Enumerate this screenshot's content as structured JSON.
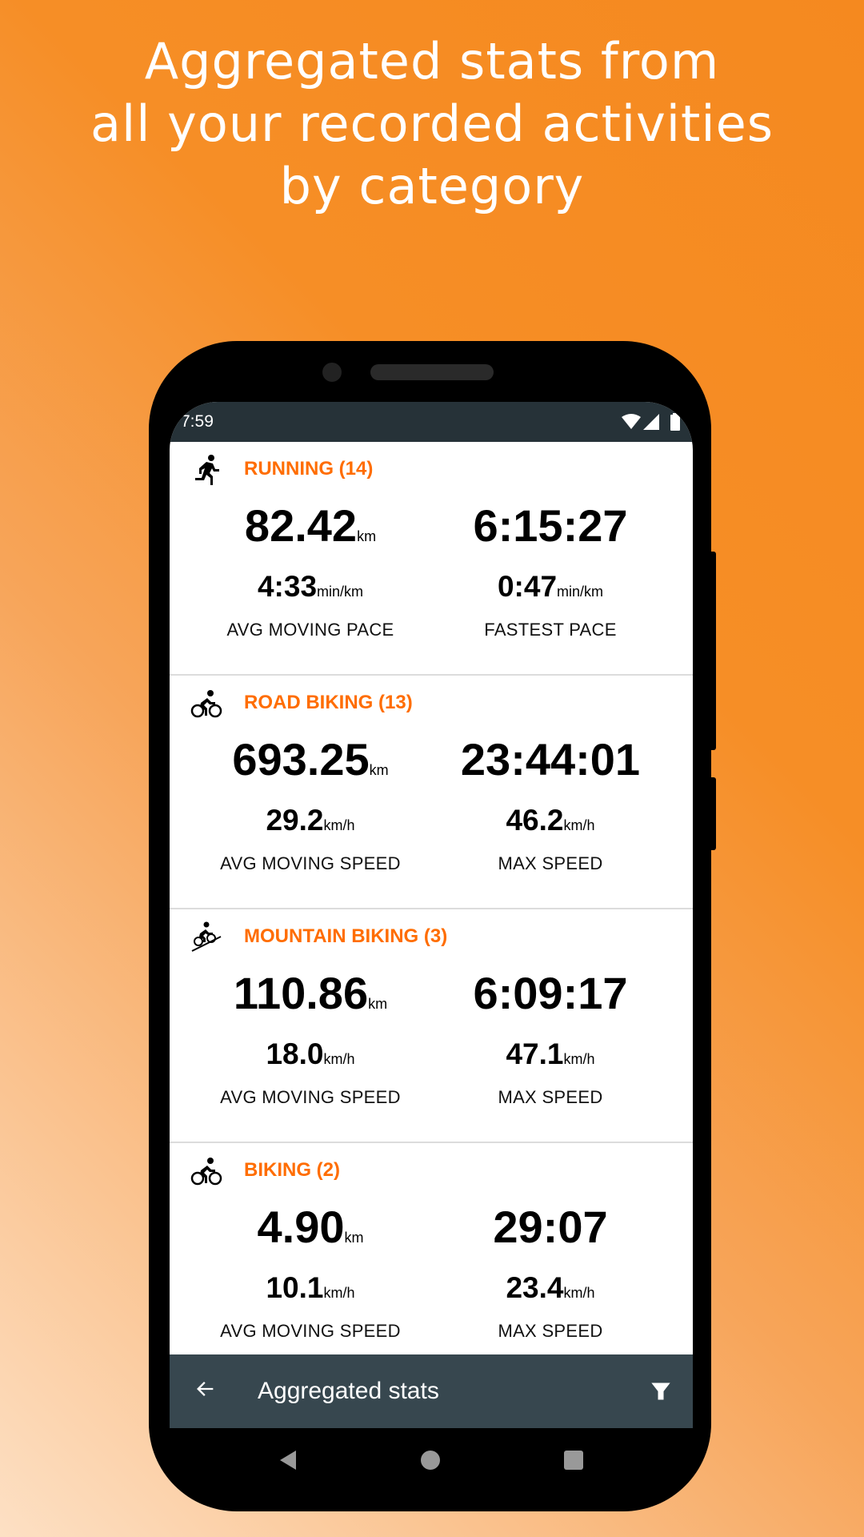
{
  "headline": [
    "Aggregated stats from",
    "all your recorded activities",
    "by category"
  ],
  "status": {
    "time": "7:59",
    "icons": [
      "wifi-icon",
      "signal-icon",
      "battery-icon"
    ]
  },
  "accent": "#ff6d00",
  "sections": [
    {
      "icon": "running-icon",
      "title": "RUNNING (14)",
      "distance": "82.42",
      "distance_unit": "km",
      "time": "6:15:27",
      "stat1": "4:33",
      "stat1_unit": "min/km",
      "stat1_label": "AVG MOVING PACE",
      "stat2": "0:47",
      "stat2_unit": "min/km",
      "stat2_label": "FASTEST PACE"
    },
    {
      "icon": "road-bike-icon",
      "title": "ROAD BIKING (13)",
      "distance": "693.25",
      "distance_unit": "km",
      "time": "23:44:01",
      "stat1": "29.2",
      "stat1_unit": "km/h",
      "stat1_label": "AVG MOVING SPEED",
      "stat2": "46.2",
      "stat2_unit": "km/h",
      "stat2_label": "MAX SPEED"
    },
    {
      "icon": "mountain-bike-icon",
      "title": "MOUNTAIN BIKING (3)",
      "distance": "110.86",
      "distance_unit": "km",
      "time": "6:09:17",
      "stat1": "18.0",
      "stat1_unit": "km/h",
      "stat1_label": "AVG MOVING SPEED",
      "stat2": "47.1",
      "stat2_unit": "km/h",
      "stat2_label": "MAX SPEED"
    },
    {
      "icon": "bike-icon",
      "title": "BIKING (2)",
      "distance": "4.90",
      "distance_unit": "km",
      "time": "29:07",
      "stat1": "10.1",
      "stat1_unit": "km/h",
      "stat1_label": "AVG MOVING SPEED",
      "stat2": "23.4",
      "stat2_unit": "km/h",
      "stat2_label": "MAX SPEED"
    }
  ],
  "toolbar": {
    "title": "Aggregated stats",
    "back_icon": "arrow-left-icon",
    "filter_icon": "filter-icon"
  }
}
